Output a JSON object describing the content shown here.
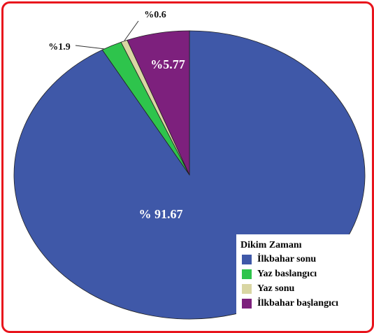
{
  "chart_data": {
    "type": "pie",
    "legend_title": "Dikim Zamanı",
    "categories": [
      "İlkbahar sonu",
      "Yaz baslangıcı",
      "Yaz sonu",
      "İlkbahar başlangıcı"
    ],
    "values": [
      91.67,
      1.9,
      0.6,
      5.77
    ],
    "value_labels": [
      "% 91.67",
      "%1.9",
      "%0.6",
      "%5.77"
    ],
    "colors": [
      "#3f58a8",
      "#2ec44c",
      "#d9d6a3",
      "#7d207d"
    ],
    "legend": "lower right"
  }
}
